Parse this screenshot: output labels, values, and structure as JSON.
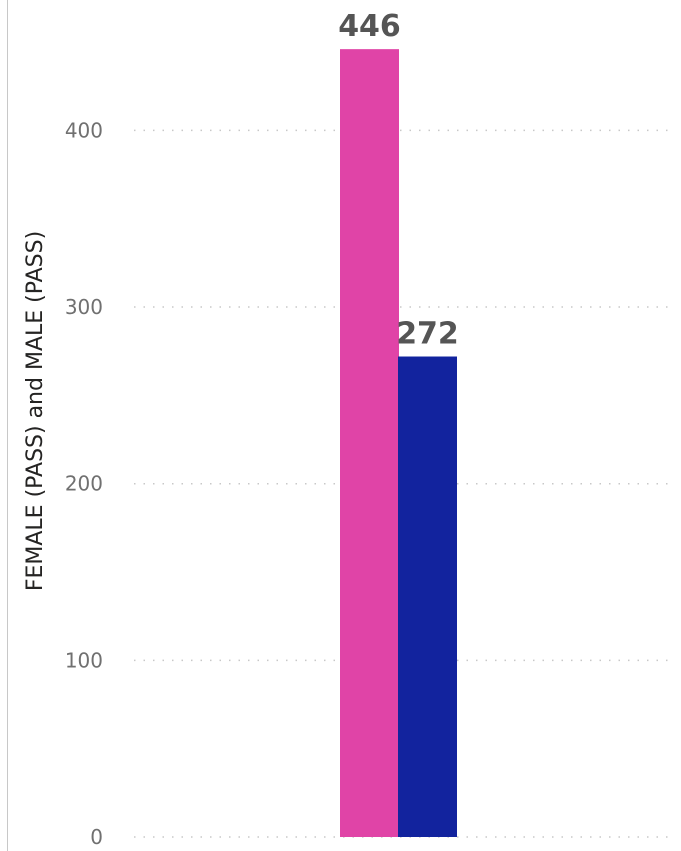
{
  "chart_data": {
    "type": "bar",
    "categories": [
      ""
    ],
    "series": [
      {
        "name": "FEMALE (PASS)",
        "values": [
          446
        ],
        "color": "#E044A7"
      },
      {
        "name": "MALE (PASS)",
        "values": [
          272
        ],
        "color": "#12239E"
      }
    ],
    "ylabel": "FEMALE (PASS) and MALE (PASS)",
    "ylim": [
      0,
      470
    ],
    "yticks": [
      0,
      100,
      200,
      300,
      400
    ],
    "grid": true,
    "data_labels": [
      "446",
      "272"
    ]
  }
}
